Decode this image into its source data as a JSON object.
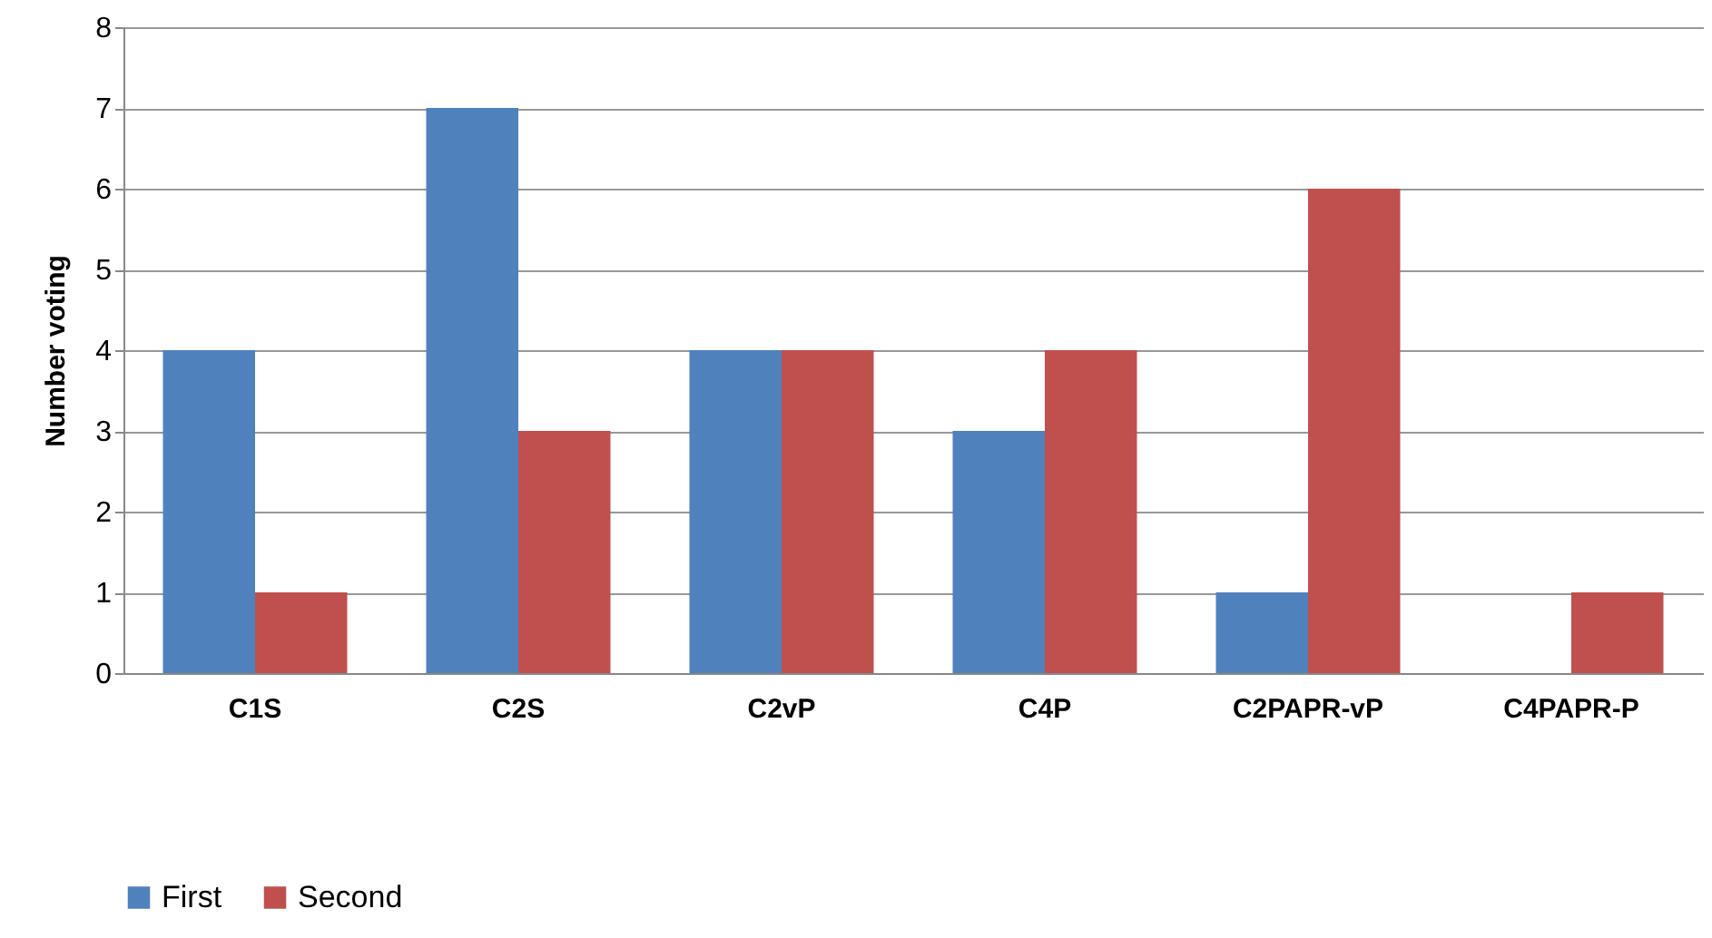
{
  "chart_data": {
    "type": "bar",
    "ylabel": "Number voting",
    "categories": [
      "C1S",
      "C2S",
      "C2vP",
      "C4P",
      "C2PAPR-vP",
      "C4PAPR-P"
    ],
    "series": [
      {
        "name": "First",
        "color": "#4f81bd",
        "values": [
          4,
          7,
          4,
          3,
          1,
          0
        ]
      },
      {
        "name": "Second",
        "color": "#c0504d",
        "values": [
          1,
          3,
          4,
          4,
          6,
          1
        ]
      }
    ],
    "ylim": [
      0,
      8
    ],
    "yticks": [
      0,
      1,
      2,
      3,
      4,
      5,
      6,
      7,
      8
    ],
    "grid": "y",
    "legend": "bottom"
  }
}
